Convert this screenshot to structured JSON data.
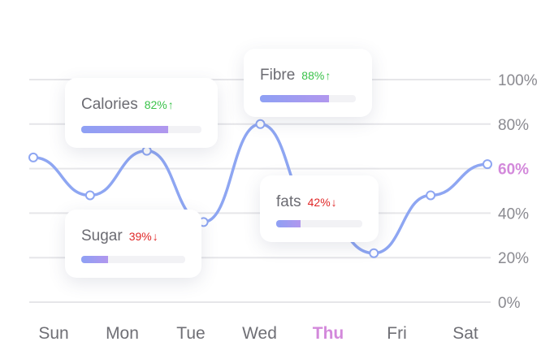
{
  "chart_data": {
    "type": "line",
    "categories": [
      "Sun",
      "Mon",
      "Tue",
      "Wed",
      "Thu",
      "Fri",
      "Sat"
    ],
    "highlight_category": "Thu",
    "series": [
      {
        "x": [
          0,
          1,
          2,
          3,
          4,
          5,
          6,
          7,
          8
        ],
        "values": [
          65,
          48,
          68,
          36,
          80,
          40,
          22,
          48,
          62
        ]
      }
    ],
    "yticks": [
      "0%",
      "20%",
      "40%",
      "60%",
      "80%",
      "100%"
    ],
    "ytick_values": [
      0,
      20,
      40,
      60,
      80,
      100
    ],
    "highlight_tick": "60%",
    "ylim": [
      0,
      100
    ],
    "grid": true,
    "axis_position": "right",
    "line_color": "#8ea6f2",
    "highlight_color": "#d389db"
  },
  "cards": [
    {
      "id": "calories",
      "label": "Calories",
      "percent_label": "82%",
      "value": 0.72,
      "trend": "up"
    },
    {
      "id": "fibre",
      "label": "Fibre",
      "percent_label": "88%",
      "value": 0.72,
      "trend": "up"
    },
    {
      "id": "sugar",
      "label": "Sugar",
      "percent_label": "39%",
      "value": 0.26,
      "trend": "down"
    },
    {
      "id": "fats",
      "label": "fats",
      "percent_label": "42%",
      "value": 0.28,
      "trend": "down"
    }
  ]
}
